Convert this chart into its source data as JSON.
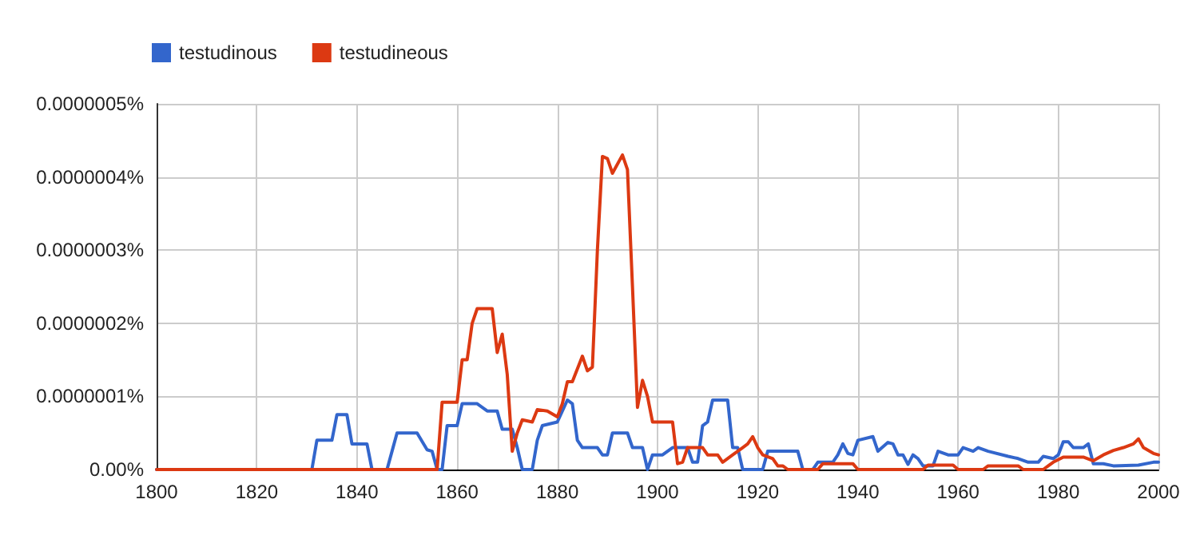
{
  "chart_data": {
    "type": "line",
    "xlim": [
      1800,
      2000
    ],
    "xticks": [
      1800,
      1820,
      1840,
      1860,
      1880,
      1900,
      1920,
      1940,
      1960,
      1980,
      2000
    ],
    "ylim": [
      0,
      5e-07
    ],
    "yticks": [
      {
        "value": 0,
        "label": "0.00%"
      },
      {
        "value": 1e-07,
        "label": "0.0000001%"
      },
      {
        "value": 2e-07,
        "label": "0.0000002%"
      },
      {
        "value": 3e-07,
        "label": "0.0000003%"
      },
      {
        "value": 4e-07,
        "label": "0.0000004%"
      },
      {
        "value": 5e-07,
        "label": "0.0000005%"
      }
    ],
    "grid": true,
    "legend": "top left",
    "marker": "none",
    "line_style": "solid",
    "series": [
      {
        "name": "testudinous",
        "color": "#3366cc",
        "x": [
          1800,
          1831,
          1832,
          1835,
          1836,
          1838,
          1839,
          1842,
          1843,
          1846,
          1847,
          1848,
          1852,
          1854,
          1855,
          1856,
          1857,
          1858,
          1860,
          1861,
          1864,
          1866,
          1868,
          1869,
          1871,
          1872,
          1873,
          1875,
          1876,
          1877,
          1880,
          1882,
          1883,
          1884,
          1885,
          1888,
          1889,
          1890,
          1891,
          1894,
          1895,
          1897,
          1898,
          1899,
          1901,
          1903,
          1906,
          1907,
          1908,
          1909,
          1910,
          1911,
          1914,
          1915,
          1916,
          1917,
          1921,
          1922,
          1928,
          1929,
          1931,
          1932,
          1935,
          1936,
          1937,
          1938,
          1939,
          1940,
          1943,
          1944,
          1946,
          1947,
          1948,
          1949,
          1950,
          1951,
          1952,
          1953,
          1955,
          1956,
          1958,
          1960,
          1961,
          1963,
          1964,
          1966,
          1970,
          1972,
          1974,
          1976,
          1977,
          1979,
          1980,
          1981,
          1982,
          1983,
          1985,
          1986,
          1987,
          1989,
          1991,
          1996,
          1999,
          2000
        ],
        "values": [
          0,
          0,
          4e-08,
          4e-08,
          7.5e-08,
          7.5e-08,
          3.5e-08,
          3.5e-08,
          0,
          0,
          2.5e-08,
          5e-08,
          5e-08,
          2.7e-08,
          2.5e-08,
          0,
          0,
          6e-08,
          6e-08,
          9e-08,
          9e-08,
          8e-08,
          8e-08,
          5.5e-08,
          5.5e-08,
          3e-08,
          0,
          0,
          4e-08,
          6e-08,
          6.5e-08,
          9.5e-08,
          9e-08,
          4e-08,
          3e-08,
          3e-08,
          2e-08,
          2e-08,
          5e-08,
          5e-08,
          3e-08,
          3e-08,
          0,
          2e-08,
          2e-08,
          3e-08,
          3e-08,
          1e-08,
          1e-08,
          6e-08,
          6.5e-08,
          9.5e-08,
          9.5e-08,
          3e-08,
          3e-08,
          0,
          0,
          2.5e-08,
          2.5e-08,
          0,
          0,
          1e-08,
          1e-08,
          2e-08,
          3.5e-08,
          2.2e-08,
          2e-08,
          4e-08,
          4.5e-08,
          2.5e-08,
          3.7e-08,
          3.5e-08,
          2e-08,
          2e-08,
          7e-09,
          2e-08,
          1.5e-08,
          5e-09,
          5e-09,
          2.5e-08,
          2e-08,
          2e-08,
          3e-08,
          2.5e-08,
          3e-08,
          2.5e-08,
          1.8e-08,
          1.5e-08,
          1e-08,
          1e-08,
          1.8e-08,
          1.5e-08,
          2e-08,
          3.8e-08,
          3.8e-08,
          3e-08,
          3e-08,
          3.5e-08,
          8e-09,
          8e-09,
          5e-09,
          6e-09,
          1e-08,
          1e-08
        ]
      },
      {
        "name": "testudineous",
        "color": "#dc3912",
        "x": [
          1800,
          1856,
          1857,
          1860,
          1861,
          1862,
          1863,
          1864,
          1867,
          1868,
          1869,
          1870,
          1871,
          1872,
          1873,
          1875,
          1876,
          1878,
          1880,
          1881,
          1882,
          1883,
          1885,
          1886,
          1887,
          1888,
          1889,
          1890,
          1891,
          1893,
          1894,
          1895,
          1896,
          1897,
          1898,
          1899,
          1901,
          1903,
          1904,
          1905,
          1906,
          1909,
          1910,
          1912,
          1913,
          1915,
          1917,
          1918,
          1919,
          1920,
          1921,
          1923,
          1924,
          1925,
          1926,
          1932,
          1933,
          1939,
          1940,
          1953,
          1954,
          1959,
          1960,
          1965,
          1966,
          1972,
          1973,
          1977,
          1978,
          1979,
          1981,
          1985,
          1987,
          1989,
          1991,
          1993,
          1995,
          1996,
          1997,
          1999,
          2000
        ],
        "values": [
          0,
          0,
          9.2e-08,
          9.2e-08,
          1.5e-07,
          1.5e-07,
          2e-07,
          2.2e-07,
          2.2e-07,
          1.6e-07,
          1.85e-07,
          1.3e-07,
          2.5e-08,
          5e-08,
          6.8e-08,
          6.5e-08,
          8.2e-08,
          8e-08,
          7.2e-08,
          9e-08,
          1.2e-07,
          1.2e-07,
          1.55e-07,
          1.35e-07,
          1.4e-07,
          3e-07,
          4.28e-07,
          4.25e-07,
          4.05e-07,
          4.3e-07,
          4.1e-07,
          2.5e-07,
          8.5e-08,
          1.22e-07,
          1e-07,
          6.5e-08,
          6.5e-08,
          6.5e-08,
          8e-09,
          1e-08,
          3e-08,
          3e-08,
          2e-08,
          2e-08,
          1e-08,
          2e-08,
          3e-08,
          3.5e-08,
          4.5e-08,
          3e-08,
          2e-08,
          1.5e-08,
          5e-09,
          5e-09,
          0,
          0,
          8e-09,
          8e-09,
          0,
          0,
          6e-09,
          6e-09,
          0,
          0,
          5e-09,
          5e-09,
          0,
          0,
          5e-09,
          1e-08,
          1.7e-08,
          1.7e-08,
          1.2e-08,
          2e-08,
          2.6e-08,
          3e-08,
          3.5e-08,
          4.2e-08,
          3e-08,
          2.2e-08,
          2e-08
        ]
      }
    ]
  }
}
